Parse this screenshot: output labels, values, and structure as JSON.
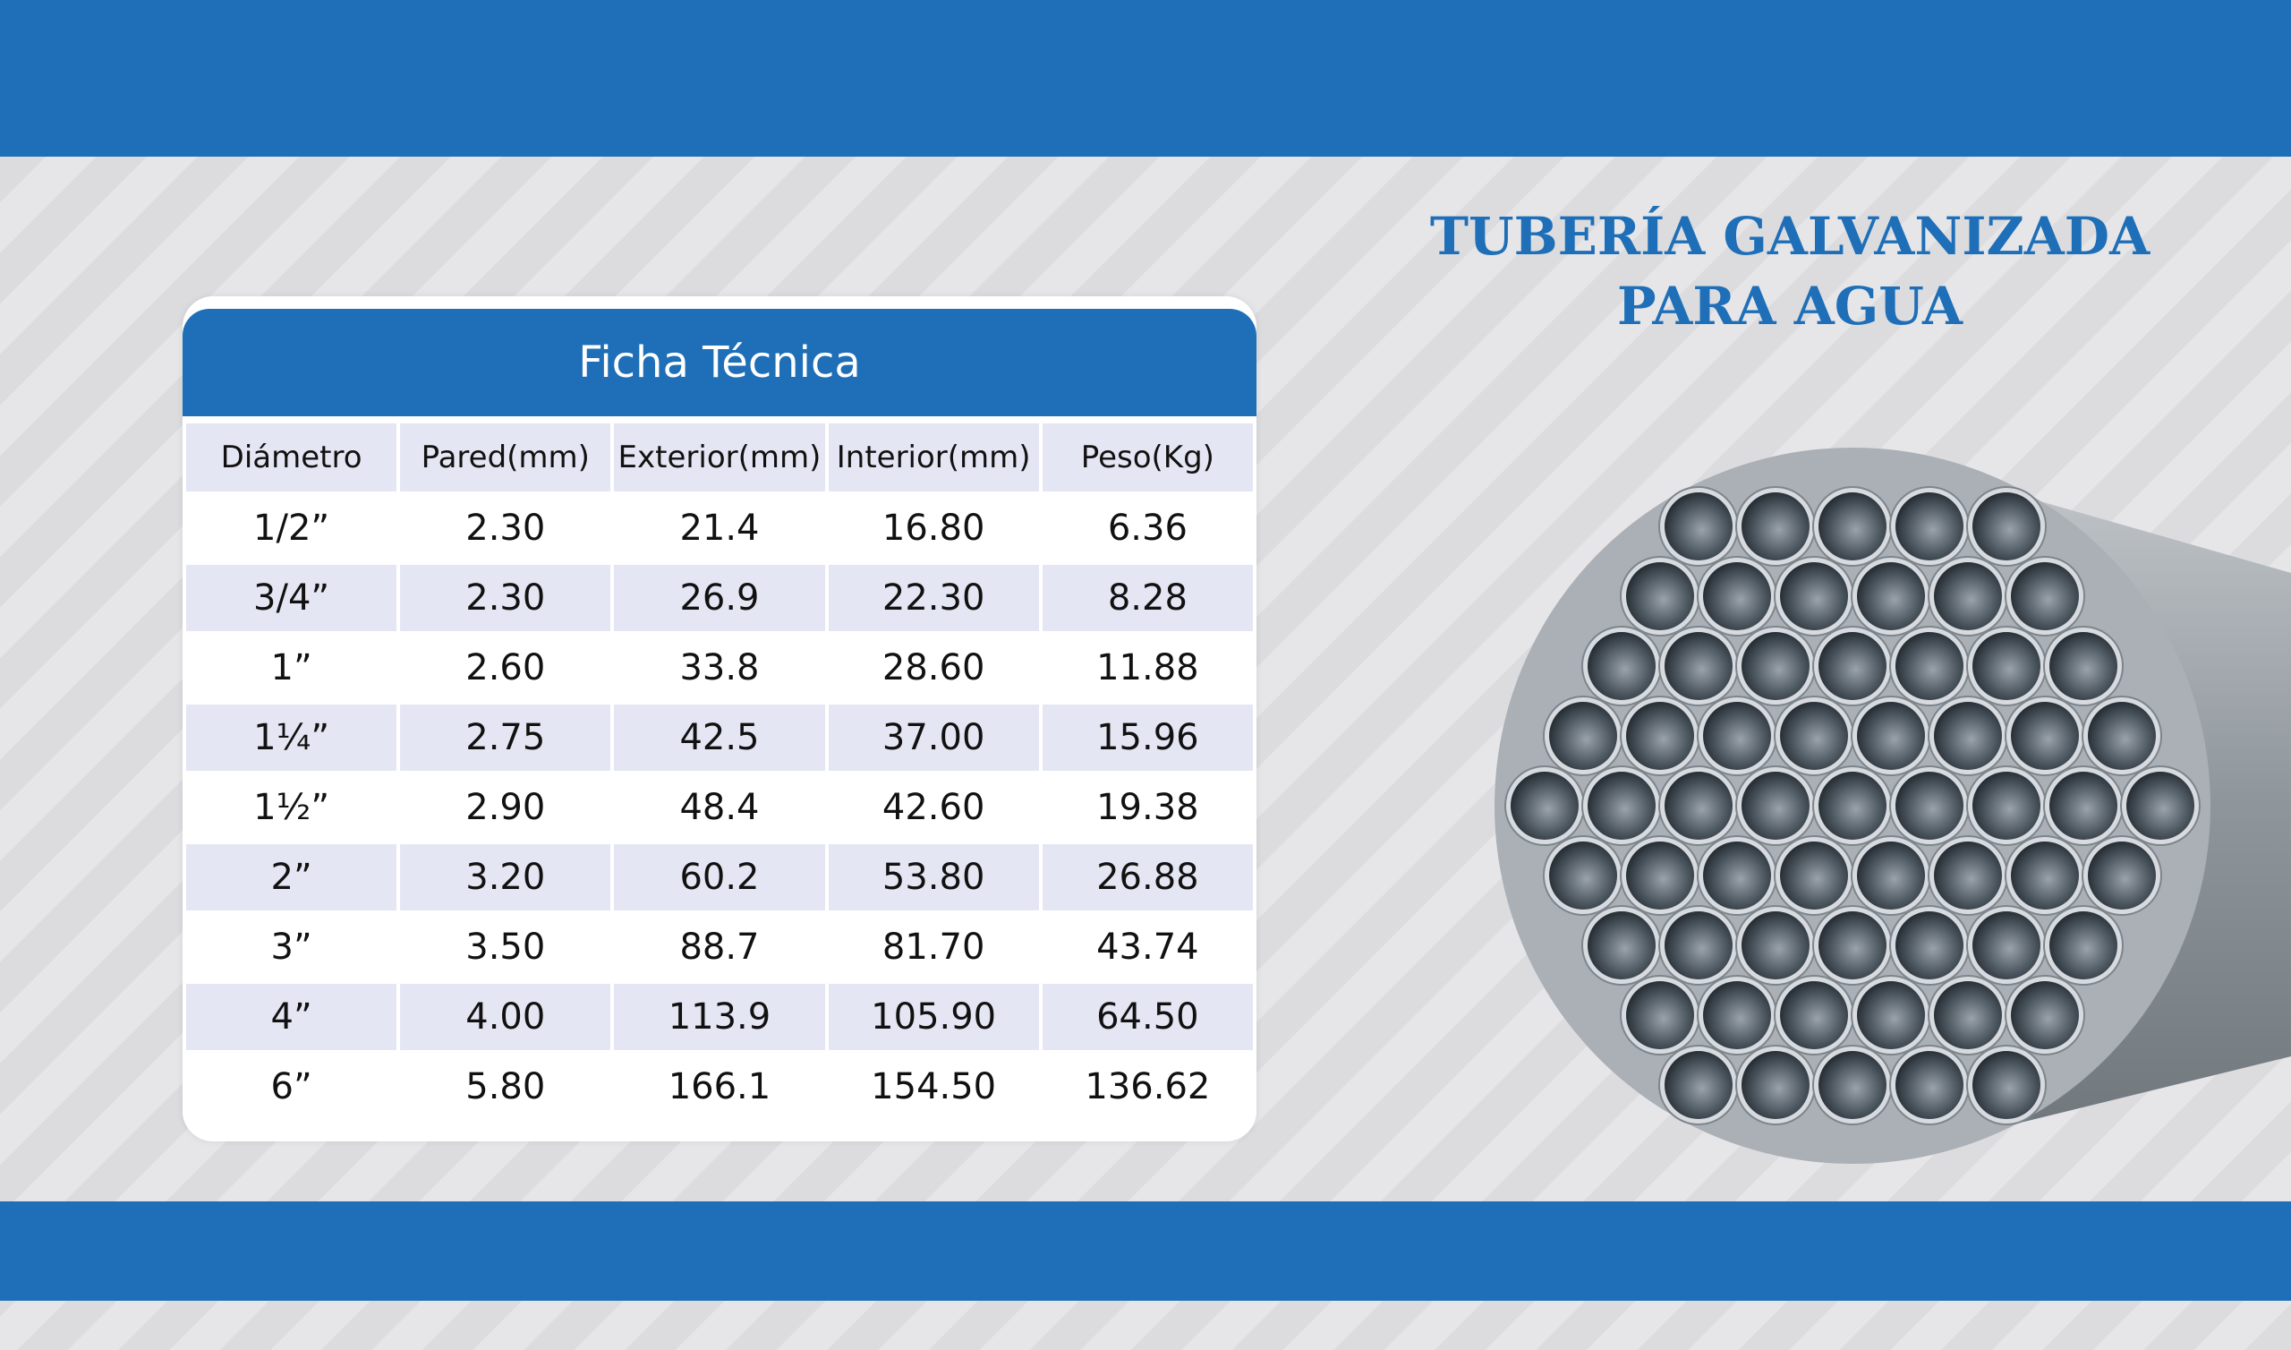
{
  "header": {
    "title_lines": [
      "TUBERÍA GALVANIZADA",
      "PARA AGUA"
    ]
  },
  "table": {
    "title": "Ficha Técnica",
    "columns": [
      "Diámetro",
      "Pared(mm)",
      "Exterior(mm)",
      "Interior(mm)",
      "Peso(Kg)"
    ],
    "rows": [
      [
        "1/2”",
        "2.30",
        "21.4",
        "16.80",
        "6.36"
      ],
      [
        "3/4”",
        "2.30",
        "26.9",
        "22.30",
        "8.28"
      ],
      [
        "1”",
        "2.60",
        "33.8",
        "28.60",
        "11.88"
      ],
      [
        "1¼”",
        "2.75",
        "42.5",
        "37.00",
        "15.96"
      ],
      [
        "1½”",
        "2.90",
        "48.4",
        "42.60",
        "19.38"
      ],
      [
        "2”",
        "3.20",
        "60.2",
        "53.80",
        "26.88"
      ],
      [
        "3”",
        "3.50",
        "88.7",
        "81.70",
        "43.74"
      ],
      [
        "4”",
        "4.00",
        "113.9",
        "105.90",
        "64.50"
      ],
      [
        "6”",
        "5.80",
        "166.1",
        "154.50",
        "136.62"
      ]
    ]
  }
}
